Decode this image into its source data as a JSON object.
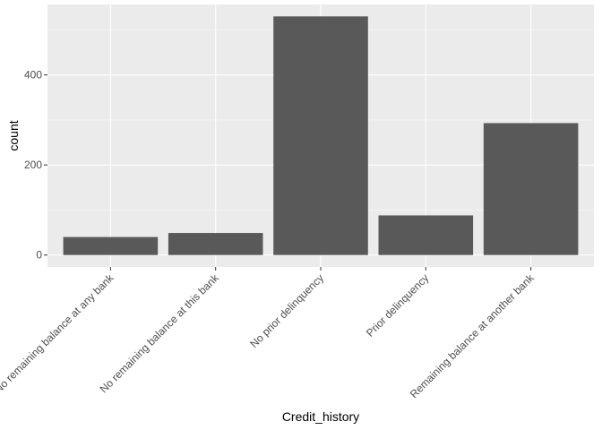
{
  "chart_data": {
    "type": "bar",
    "categories": [
      "No remaining balance at any bank",
      "No remaining balance at this bank",
      "No prior delinquency",
      "Prior delinquency",
      "Remaining balance at another bank"
    ],
    "values": [
      40,
      49,
      530,
      88,
      293
    ],
    "title": "",
    "xlabel": "Credit_history",
    "ylabel": "count",
    "ylim": [
      -26.5,
      556.5
    ],
    "yticks": [
      0,
      200,
      400
    ],
    "grid": true,
    "colors": {
      "panel": "#ebebeb",
      "bar": "#595959",
      "grid_major": "#ffffff",
      "tick": "#4d4d4d"
    }
  }
}
